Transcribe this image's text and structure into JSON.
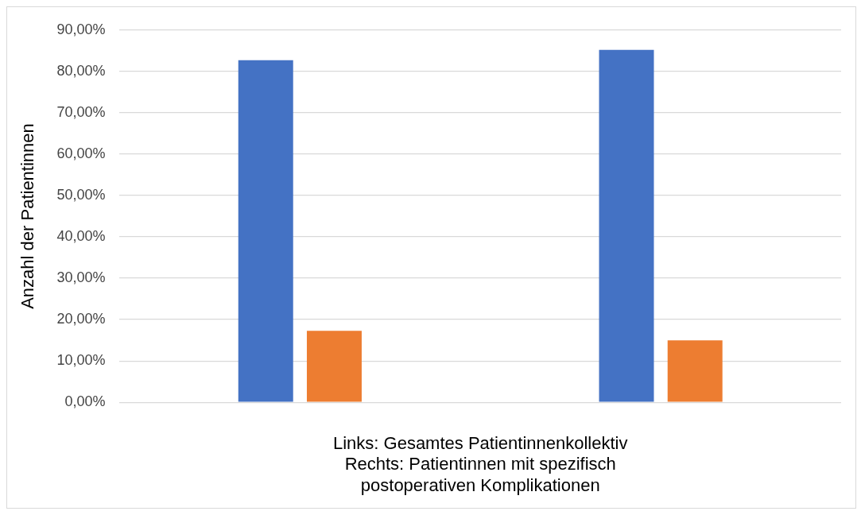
{
  "chart_data": {
    "type": "bar",
    "categories": [
      null,
      null
    ],
    "series": [
      {
        "color": "#4472c4",
        "values": [
          82.7,
          85.2
        ]
      },
      {
        "color": "#ed7d31",
        "values": [
          17.3,
          15.0
        ]
      }
    ],
    "xlabel": "Links: Gesamtes Patientinnenkollektiv\nRechts: Patientinnen mit spezifisch\npostoperativen Komplikationen",
    "ylabel": "Anzahl der Patientinnen",
    "ylim": [
      0,
      90
    ],
    "yticks": [
      {
        "value": 0,
        "label": "0,00%"
      },
      {
        "value": 10,
        "label": "10,00%"
      },
      {
        "value": 20,
        "label": "20,00%"
      },
      {
        "value": 30,
        "label": "30,00%"
      },
      {
        "value": 40,
        "label": "40,00%"
      },
      {
        "value": 50,
        "label": "50,00%"
      },
      {
        "value": 60,
        "label": "60,00%"
      },
      {
        "value": 70,
        "label": "70,00%"
      },
      {
        "value": 80,
        "label": "80,00%"
      },
      {
        "value": 90,
        "label": "90,00%"
      }
    ],
    "grid": "y",
    "legend": false
  }
}
